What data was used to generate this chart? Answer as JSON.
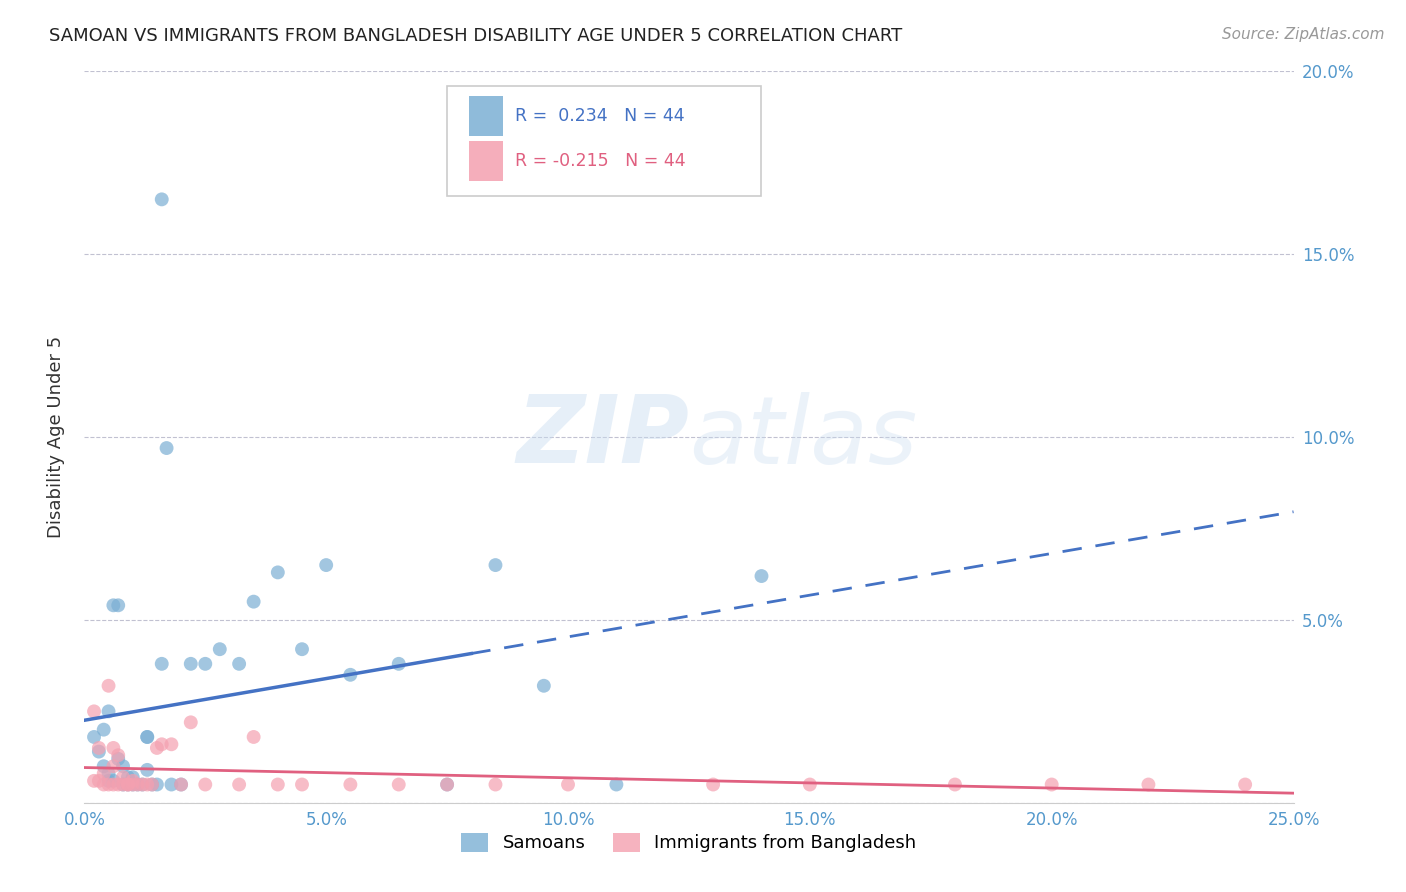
{
  "title": "SAMOAN VS IMMIGRANTS FROM BANGLADESH DISABILITY AGE UNDER 5 CORRELATION CHART",
  "source": "Source: ZipAtlas.com",
  "ylabel": "Disability Age Under 5",
  "xlim": [
    0.0,
    0.25
  ],
  "ylim": [
    0.0,
    0.2
  ],
  "xticks": [
    0.0,
    0.05,
    0.1,
    0.15,
    0.2,
    0.25
  ],
  "yticks": [
    0.0,
    0.05,
    0.1,
    0.15,
    0.2
  ],
  "legend_labels": [
    "Samoans",
    "Immigrants from Bangladesh"
  ],
  "R_samoan": 0.234,
  "R_bangladesh": -0.215,
  "N_samoan": 44,
  "N_bangladesh": 44,
  "samoan_color": "#7BAFD4",
  "bangladesh_color": "#F4A0B0",
  "samoan_line_color": "#4472C4",
  "bangladesh_line_color": "#E06080",
  "background_color": "#FFFFFF",
  "watermark": "ZIPatlas",
  "samoan_x": [
    0.002,
    0.003,
    0.004,
    0.004,
    0.005,
    0.005,
    0.005,
    0.006,
    0.006,
    0.007,
    0.007,
    0.008,
    0.008,
    0.009,
    0.009,
    0.01,
    0.01,
    0.011,
    0.012,
    0.013,
    0.013,
    0.014,
    0.015,
    0.016,
    0.017,
    0.018,
    0.02,
    0.022,
    0.025,
    0.028,
    0.032,
    0.035,
    0.04,
    0.045,
    0.05,
    0.055,
    0.065,
    0.075,
    0.085,
    0.095,
    0.11,
    0.013,
    0.016,
    0.14
  ],
  "samoan_y": [
    0.018,
    0.014,
    0.02,
    0.01,
    0.008,
    0.006,
    0.025,
    0.054,
    0.006,
    0.054,
    0.012,
    0.01,
    0.005,
    0.005,
    0.007,
    0.005,
    0.007,
    0.005,
    0.005,
    0.009,
    0.018,
    0.005,
    0.005,
    0.165,
    0.097,
    0.005,
    0.005,
    0.038,
    0.038,
    0.042,
    0.038,
    0.055,
    0.063,
    0.042,
    0.065,
    0.035,
    0.038,
    0.005,
    0.065,
    0.032,
    0.005,
    0.018,
    0.038,
    0.062
  ],
  "bangladesh_x": [
    0.002,
    0.002,
    0.003,
    0.003,
    0.004,
    0.004,
    0.005,
    0.005,
    0.006,
    0.006,
    0.006,
    0.007,
    0.007,
    0.008,
    0.008,
    0.009,
    0.009,
    0.01,
    0.01,
    0.011,
    0.012,
    0.013,
    0.014,
    0.015,
    0.016,
    0.018,
    0.02,
    0.022,
    0.025,
    0.032,
    0.035,
    0.04,
    0.045,
    0.055,
    0.065,
    0.075,
    0.085,
    0.1,
    0.13,
    0.15,
    0.18,
    0.2,
    0.22,
    0.24
  ],
  "bangladesh_y": [
    0.006,
    0.025,
    0.006,
    0.015,
    0.005,
    0.008,
    0.005,
    0.032,
    0.005,
    0.01,
    0.015,
    0.005,
    0.013,
    0.005,
    0.007,
    0.005,
    0.005,
    0.005,
    0.006,
    0.005,
    0.005,
    0.005,
    0.005,
    0.015,
    0.016,
    0.016,
    0.005,
    0.022,
    0.005,
    0.005,
    0.018,
    0.005,
    0.005,
    0.005,
    0.005,
    0.005,
    0.005,
    0.005,
    0.005,
    0.005,
    0.005,
    0.005,
    0.005,
    0.005
  ]
}
